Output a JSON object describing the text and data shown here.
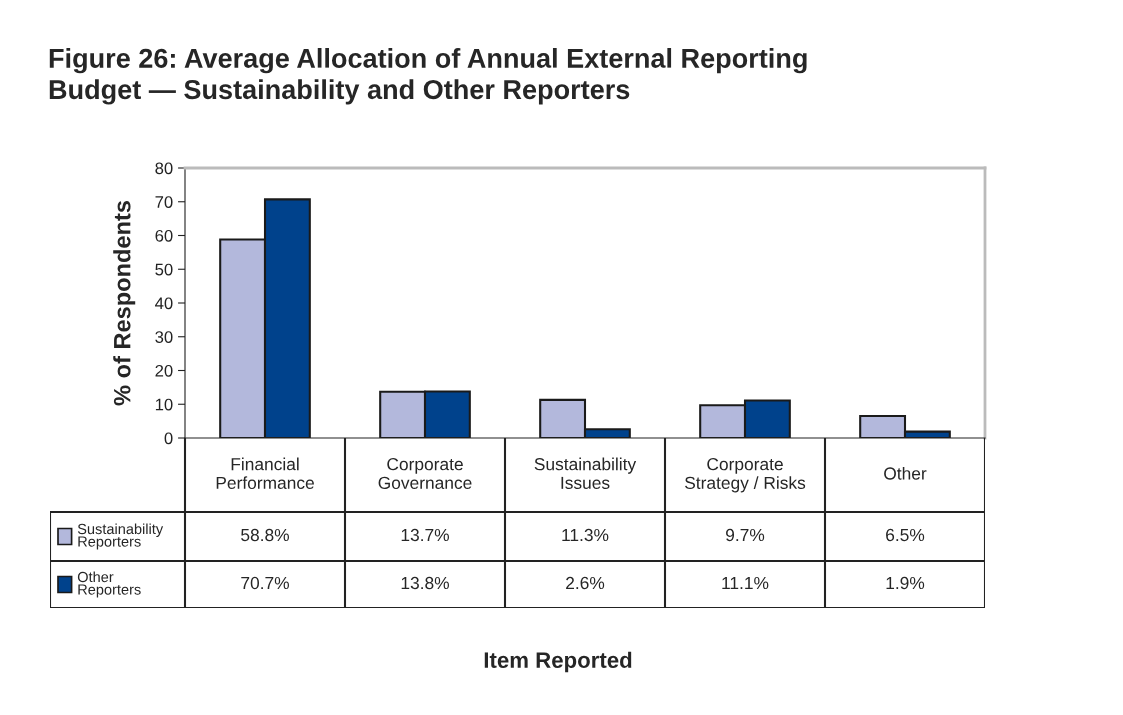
{
  "chart_data": {
    "type": "bar",
    "title": "Figure 26: Average Allocation of Annual External Reporting\nBudget — Sustainability and Other Reporters",
    "annotations": [
      "Item Reported"
    ],
    "ylabel": "% of Respondents",
    "categories": [
      "Financial\nPerformance",
      "Corporate\nGovernance",
      "Sustainability\nIssues",
      "Corporate\nStrategy / Risks",
      "Other"
    ],
    "series": [
      {
        "name": "Sustainability\nReporters",
        "color": "#b3b8dc",
        "values": [
          58.8,
          13.7,
          11.3,
          9.7,
          6.5
        ],
        "value_labels": [
          "58.8%",
          "13.7%",
          "11.3%",
          "9.7%",
          "6.5%"
        ]
      },
      {
        "name": "Other\nReporters",
        "color": "#00428c",
        "values": [
          70.7,
          13.8,
          2.6,
          11.1,
          1.9
        ],
        "value_labels": [
          "70.7%",
          "13.8%",
          "2.6%",
          "11.1%",
          "1.9%"
        ]
      }
    ],
    "ylim": [
      0,
      80
    ],
    "yticks": [
      0,
      10,
      20,
      30,
      40,
      50,
      60,
      70,
      80
    ],
    "grid": false,
    "legend": "bottom left"
  }
}
